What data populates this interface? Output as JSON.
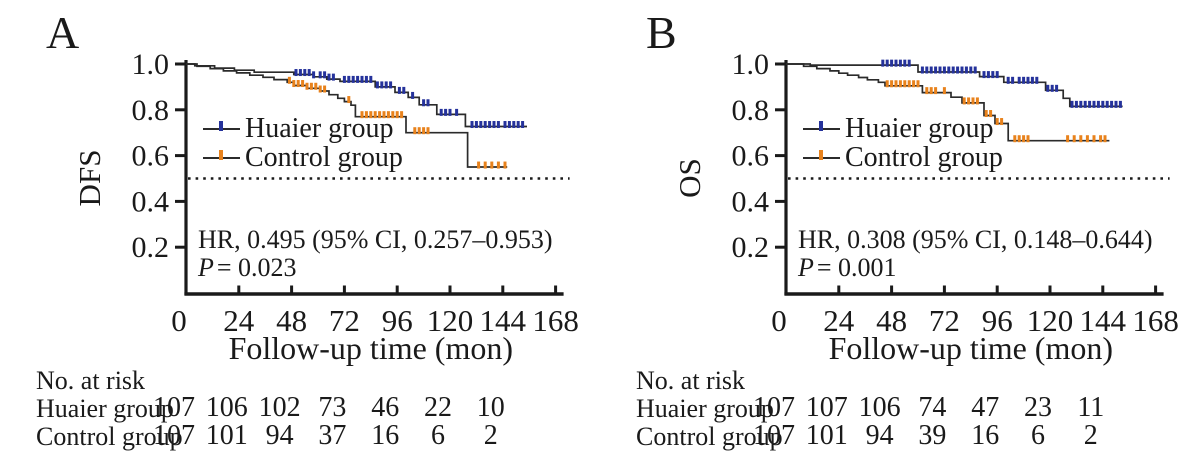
{
  "figure": {
    "background": "#ffffff",
    "colors": {
      "axis": "#1a1a1a",
      "curve": "#2b2b2b",
      "huaier": "#25329b",
      "control": "#e8821c"
    }
  },
  "chart_data": [
    {
      "panel": "A",
      "type": "line",
      "subtype": "kaplan-meier-step",
      "xlabel": "Follow-up time (mon)",
      "ylabel": "DFS",
      "xticks": [
        0,
        24,
        48,
        72,
        96,
        120,
        144,
        168
      ],
      "yticks": [
        0.2,
        0.4,
        0.6,
        0.8,
        1.0
      ],
      "xlim": [
        0,
        168
      ],
      "ylim": [
        0,
        1.0
      ],
      "grid": false,
      "legend_position": "inside-left",
      "reference_line_y": 0.5,
      "annotation": {
        "hr": "HR, 0.495 (95% CI, 0.257–0.953)",
        "p_label": "P",
        "p_value": "= 0.023"
      },
      "series": [
        {
          "name": "Huaier group",
          "color": "#25329b",
          "line_color": "#2b2b2b",
          "end": 155,
          "steps": [
            [
              0,
              1.0
            ],
            [
              4,
              0.992
            ],
            [
              13,
              0.982
            ],
            [
              22,
              0.973
            ],
            [
              31,
              0.964
            ],
            [
              49,
              0.954
            ],
            [
              58,
              0.944
            ],
            [
              64,
              0.934
            ],
            [
              70,
              0.924
            ],
            [
              86,
              0.9
            ],
            [
              95,
              0.876
            ],
            [
              101,
              0.854
            ],
            [
              106,
              0.822
            ],
            [
              114,
              0.78
            ],
            [
              127,
              0.727
            ]
          ],
          "censor_times": [
            50,
            52,
            54,
            56,
            58,
            61,
            63,
            65,
            67,
            72,
            74,
            76,
            78,
            80,
            82,
            84,
            87,
            89,
            91,
            93,
            97,
            99,
            103,
            108,
            110,
            116,
            118,
            120,
            123,
            130,
            132,
            134,
            136,
            138,
            140,
            142,
            145,
            147,
            149,
            151,
            153
          ]
        },
        {
          "name": "Control group",
          "color": "#e8821c",
          "line_color": "#2b2b2b",
          "end": 146,
          "steps": [
            [
              0,
              1.0
            ],
            [
              5,
              0.99
            ],
            [
              11,
              0.98
            ],
            [
              17,
              0.97
            ],
            [
              23,
              0.961
            ],
            [
              29,
              0.951
            ],
            [
              35,
              0.942
            ],
            [
              40,
              0.932
            ],
            [
              46,
              0.92
            ],
            [
              49,
              0.906
            ],
            [
              55,
              0.894
            ],
            [
              61,
              0.882
            ],
            [
              65,
              0.866
            ],
            [
              69,
              0.85
            ],
            [
              72,
              0.836
            ],
            [
              75,
              0.82
            ],
            [
              77,
              0.77
            ],
            [
              100,
              0.7
            ],
            [
              128,
              0.55
            ]
          ],
          "censor_times": [
            47,
            49,
            51,
            53,
            55,
            57,
            59,
            61,
            63,
            74,
            80,
            82,
            84,
            86,
            88,
            90,
            92,
            94,
            96,
            98,
            104,
            106,
            108,
            110,
            133,
            136,
            139,
            142,
            145
          ]
        }
      ],
      "risk_table": {
        "title": "No. at risk",
        "rows": [
          {
            "label": "Huaier group",
            "values": [
              107,
              106,
              102,
              73,
              46,
              22,
              10
            ]
          },
          {
            "label": "Control group",
            "values": [
              107,
              101,
              94,
              37,
              16,
              6,
              2
            ]
          }
        ]
      }
    },
    {
      "panel": "B",
      "type": "line",
      "subtype": "kaplan-meier-step",
      "xlabel": "Follow-up time (mon)",
      "ylabel": "OS",
      "xticks": [
        0,
        24,
        48,
        72,
        96,
        120,
        144,
        168
      ],
      "yticks": [
        0.2,
        0.4,
        0.6,
        0.8,
        1.0
      ],
      "xlim": [
        0,
        168
      ],
      "ylim": [
        0,
        1.0
      ],
      "grid": false,
      "legend_position": "inside-left",
      "reference_line_y": 0.5,
      "annotation": {
        "hr": "HR, 0.308 (95% CI, 0.148–0.644)",
        "p_label": "P",
        "p_value": "= 0.001"
      },
      "series": [
        {
          "name": "Huaier group",
          "color": "#25329b",
          "line_color": "#2b2b2b",
          "end": 153,
          "steps": [
            [
              0,
              1.0
            ],
            [
              11,
              0.995
            ],
            [
              60,
              0.965
            ],
            [
              88,
              0.945
            ],
            [
              99,
              0.92
            ],
            [
              118,
              0.885
            ],
            [
              126,
              0.85
            ],
            [
              129,
              0.815
            ]
          ],
          "censor_times": [
            44,
            46,
            48,
            50,
            52,
            54,
            56,
            62,
            64,
            66,
            68,
            70,
            72,
            74,
            76,
            78,
            80,
            82,
            84,
            86,
            90,
            92,
            94,
            96,
            101,
            103,
            106,
            108,
            110,
            112,
            114,
            119,
            121,
            123,
            130,
            132,
            134,
            136,
            138,
            140,
            142,
            144,
            146,
            148,
            150,
            152
          ]
        },
        {
          "name": "Control group",
          "color": "#e8821c",
          "line_color": "#2b2b2b",
          "end": 147,
          "steps": [
            [
              0,
              1.0
            ],
            [
              8,
              0.99
            ],
            [
              14,
              0.98
            ],
            [
              20,
              0.97
            ],
            [
              24,
              0.96
            ],
            [
              28,
              0.951
            ],
            [
              33,
              0.941
            ],
            [
              37,
              0.931
            ],
            [
              42,
              0.92
            ],
            [
              45,
              0.905
            ],
            [
              62,
              0.875
            ],
            [
              75,
              0.855
            ],
            [
              80,
              0.83
            ],
            [
              90,
              0.775
            ],
            [
              95,
              0.74
            ],
            [
              101,
              0.665
            ]
          ],
          "censor_times": [
            46,
            48,
            50,
            52,
            54,
            56,
            58,
            60,
            64,
            66,
            68,
            72,
            81,
            83,
            85,
            87,
            91,
            93,
            96,
            98,
            104,
            106,
            108,
            110,
            128,
            131,
            134,
            137,
            140,
            143,
            145
          ]
        }
      ],
      "risk_table": {
        "title": "No. at risk",
        "rows": [
          {
            "label": "Huaier group",
            "values": [
              107,
              107,
              106,
              74,
              47,
              23,
              11
            ]
          },
          {
            "label": "Control group",
            "values": [
              107,
              101,
              94,
              39,
              16,
              6,
              2
            ]
          }
        ]
      }
    }
  ]
}
